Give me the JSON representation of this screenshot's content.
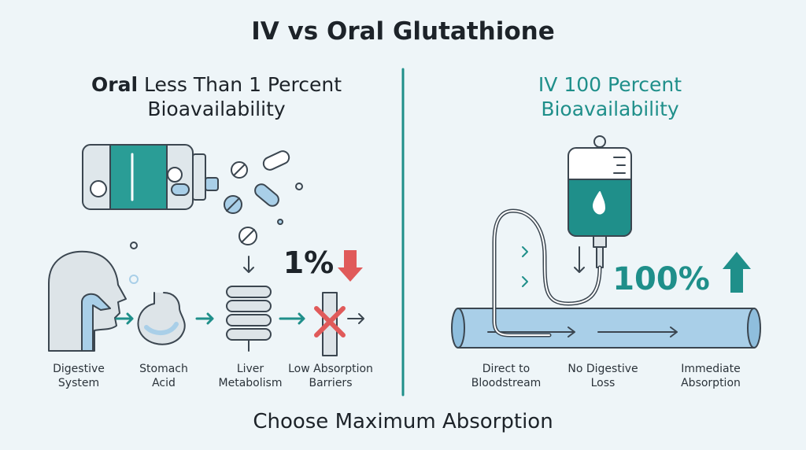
{
  "title": "IV vs Oral Glutathione",
  "left": {
    "heading_lead": "Oral",
    "heading_rest": "Less Than 1 Percent",
    "heading_line2": "Bioavailability",
    "stat": "1%",
    "labels": [
      [
        "Digestive",
        "System"
      ],
      [
        "Stomach",
        "Acid"
      ],
      [
        "Liver",
        "Metabolism"
      ],
      [
        "Low Absorption",
        "Barriers"
      ]
    ]
  },
  "right": {
    "heading_line1": "IV 100 Percent",
    "heading_line2": "Bioavailability",
    "stat": "100%",
    "labels": [
      [
        "Direct to",
        "Bloodstream"
      ],
      [
        "No Digestive",
        "Loss"
      ],
      [
        "Immediate",
        "Absorption"
      ]
    ]
  },
  "footer": "Choose Maximum Absorption"
}
